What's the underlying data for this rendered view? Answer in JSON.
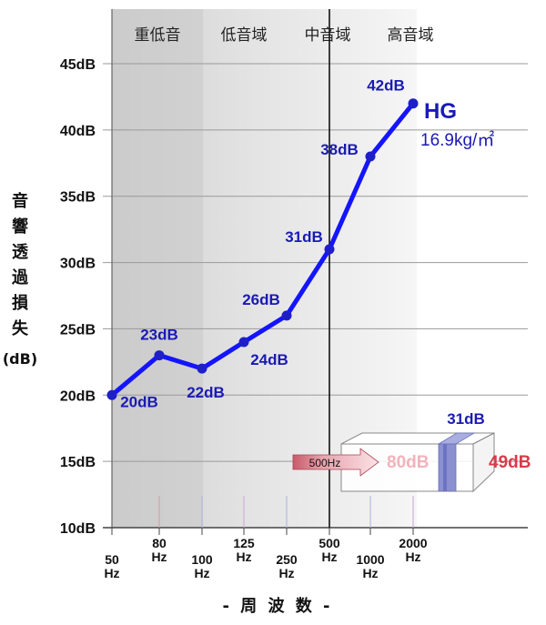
{
  "chart_data": {
    "type": "line",
    "bands": [
      "重低音",
      "低音域",
      "中音域",
      "高音域"
    ],
    "ylabel_chars": [
      "音",
      "響",
      "透",
      "過",
      "損",
      "失"
    ],
    "ylabel_unit": "(dB)",
    "xlabel": "- 周 波 数 -",
    "ylim": [
      10,
      45
    ],
    "yticks": [
      {
        "value": 10,
        "label": "10dB"
      },
      {
        "value": 15,
        "label": "15dB"
      },
      {
        "value": 20,
        "label": "20dB"
      },
      {
        "value": 25,
        "label": "25dB"
      },
      {
        "value": 30,
        "label": "30dB"
      },
      {
        "value": 35,
        "label": "35dB"
      },
      {
        "value": 40,
        "label": "40dB"
      },
      {
        "value": 45,
        "label": "45dB"
      }
    ],
    "categories": [
      "50",
      "80",
      "100",
      "125",
      "250",
      "500",
      "1000",
      "2000"
    ],
    "tick_unit": "Hz",
    "series": [
      {
        "name": "HG",
        "values": [
          20,
          23,
          22,
          24,
          26,
          31,
          38,
          42
        ],
        "labels": [
          "20dB",
          "23dB",
          "22dB",
          "24dB",
          "26dB",
          "31dB",
          "38dB",
          "42dB"
        ]
      }
    ],
    "grid": true,
    "annotation": {
      "name": "HG",
      "spec": "16.9kg/㎡",
      "frequency": "500Hz",
      "incoming": "80dB",
      "loss": "31dB",
      "outgoing": "49dB"
    },
    "colors": {
      "line": "#1414ff",
      "label": "#1a1ab5",
      "arrow": "#c95a6a",
      "outgoing": "#d93a4a",
      "panel": "#8a90d0"
    }
  }
}
